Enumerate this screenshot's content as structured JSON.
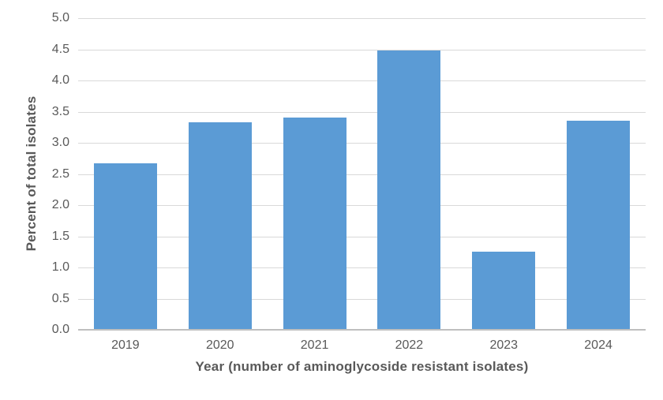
{
  "chart_data": {
    "type": "bar",
    "categories": [
      "2019",
      "2020",
      "2021",
      "2022",
      "2023",
      "2024"
    ],
    "values": [
      2.67,
      3.33,
      3.4,
      4.48,
      1.25,
      3.35
    ],
    "title": "",
    "xlabel": "Year (number of aminoglycoside resistant isolates)",
    "ylabel": "Percent of total isolates",
    "ylim": [
      0.0,
      5.0
    ],
    "ytick_step": 0.5,
    "ytick_labels": [
      "0.0",
      "0.5",
      "1.0",
      "1.5",
      "2.0",
      "2.5",
      "3.0",
      "3.5",
      "4.0",
      "4.5",
      "5.0"
    ],
    "grid": true,
    "legend_position": "none",
    "colors": {
      "bar_fill": "#5B9BD5",
      "gridline": "#D9D9D9",
      "axis_line": "#BFBFBF",
      "text": "#595959",
      "background": "#FFFFFF"
    }
  }
}
